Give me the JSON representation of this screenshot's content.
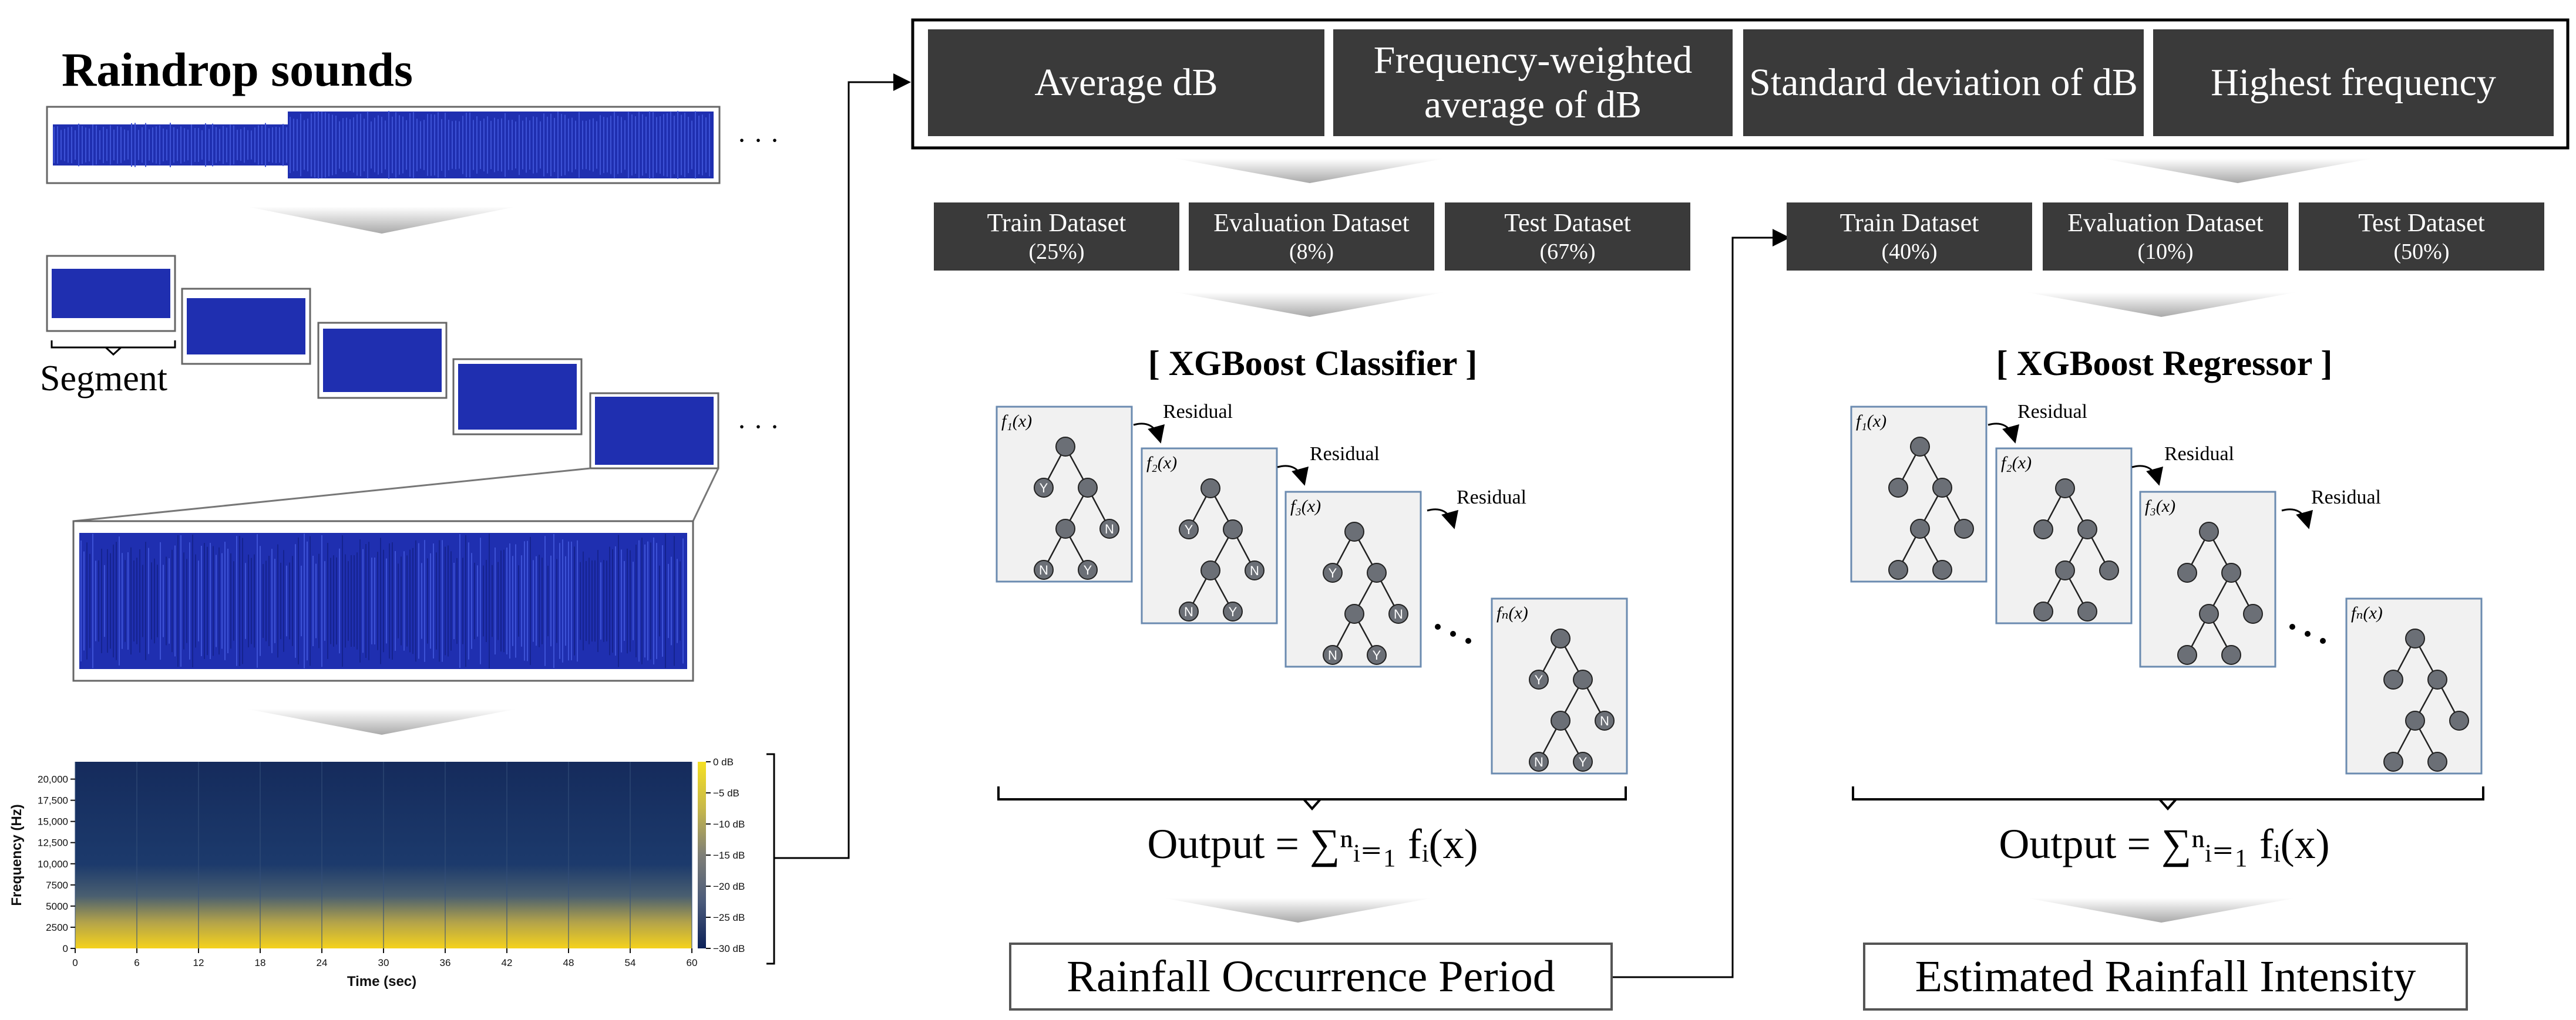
{
  "waveform": {
    "title": "Raindrop sounds",
    "ellipsis": "· · ·",
    "segment_label": "Segment"
  },
  "spectrogram": {
    "xlabel": "Time (sec)",
    "ylabel": "Frequency (Hz)",
    "x_ticks": [
      "0",
      "6",
      "12",
      "18",
      "24",
      "30",
      "36",
      "42",
      "48",
      "54",
      "60"
    ],
    "y_ticks": [
      "0",
      "2500",
      "5000",
      "7500",
      "10,000",
      "12,500",
      "15,000",
      "17,500",
      "20,000"
    ],
    "colorbar_ticks": [
      "0 dB",
      "−5 dB",
      "−10 dB",
      "−15 dB",
      "−20 dB",
      "−25 dB",
      "−30 dB"
    ],
    "colors": {
      "low": "#132a5e",
      "high": "#f5d21c"
    }
  },
  "features": [
    {
      "label": "Average dB"
    },
    {
      "label": "Frequency-weighted average of dB"
    },
    {
      "label": "Standard deviation of dB"
    },
    {
      "label": "Highest frequency"
    }
  ],
  "classifier": {
    "datasets": [
      {
        "name": "Train Dataset",
        "pct": "(25%)"
      },
      {
        "name": "Evaluation Dataset",
        "pct": "(8%)"
      },
      {
        "name": "Test Dataset",
        "pct": "(67%)"
      }
    ],
    "title": "[ XGBoost Classifier ]",
    "output_formula": "Output = ∑ⁿᵢ₌₁ fᵢ(x)",
    "result": "Rainfall Occurrence Period",
    "residual": "Residual",
    "trees": [
      "f₁(x)",
      "f₂(x)",
      "f₃(x)",
      "fₙ(x)"
    ],
    "node_labels": {
      "yes": "Y",
      "no": "N"
    }
  },
  "regressor": {
    "datasets": [
      {
        "name": "Train Dataset",
        "pct": "(40%)"
      },
      {
        "name": "Evaluation Dataset",
        "pct": "(10%)"
      },
      {
        "name": "Test Dataset",
        "pct": "(50%)"
      }
    ],
    "title": "[ XGBoost Regressor ]",
    "output_formula": "Output = ∑ⁿᵢ₌₁ fᵢ(x)",
    "result": "Estimated Rainfall Intensity",
    "residual": "Residual",
    "trees": [
      "f₁(x)",
      "f₂(x)",
      "f₃(x)",
      "fₙ(x)"
    ]
  },
  "colors": {
    "dark_box": "#3a3a3a",
    "waveform": "#1f2fb0",
    "tree_node": "#6b6f76",
    "tree_panel": "#f1f1f1"
  }
}
